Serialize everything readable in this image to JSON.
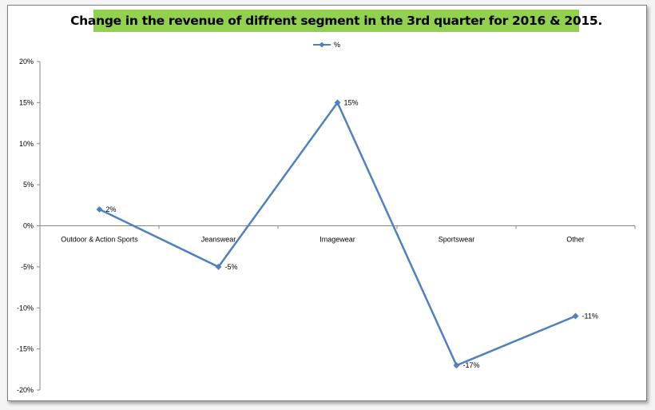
{
  "chart_data": {
    "type": "line",
    "title": "Change in the revenue of diffrent segment in the 3rd quarter for 2016 & 2015.",
    "categories": [
      "Outdoor & Action Sports",
      "Jeanswear",
      "Imagewear",
      "Sportswear",
      "Other"
    ],
    "series": [
      {
        "name": "%",
        "values": [
          2,
          -5,
          15,
          -17,
          -11
        ],
        "labels": [
          "2%",
          "-5%",
          "15%",
          "-17%",
          "-11%"
        ],
        "color": "#4f81bd"
      }
    ],
    "yticks": [
      20,
      15,
      10,
      5,
      0,
      -5,
      -10,
      -15,
      -20
    ],
    "ytick_labels": [
      "20%",
      "15%",
      "10%",
      "5%",
      "0%",
      "-5%",
      "-10%",
      "-15%",
      "-20%"
    ],
    "ylim": [
      -20,
      20
    ],
    "grid": false,
    "legend_position": "top",
    "title_background": "#92d050"
  }
}
